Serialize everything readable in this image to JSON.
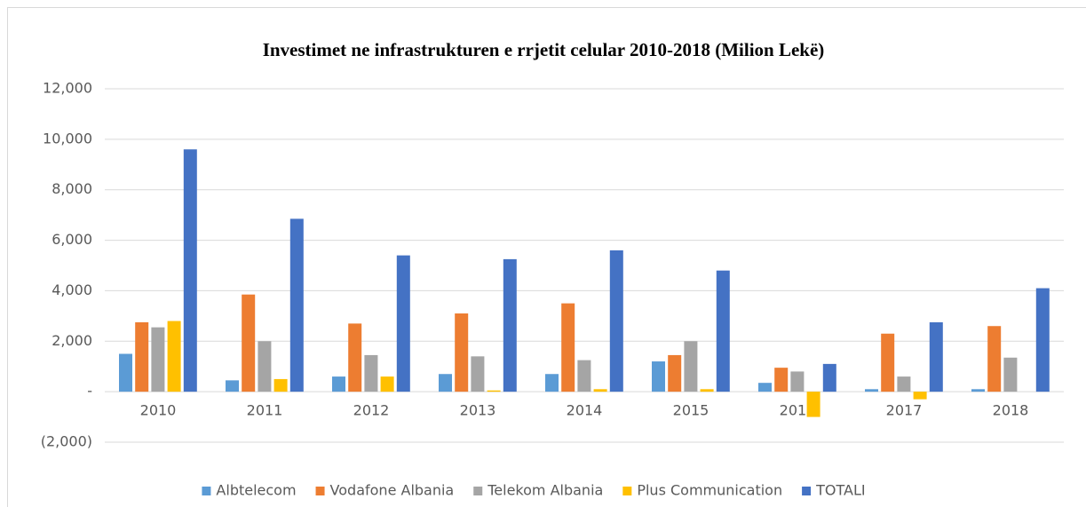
{
  "chart_data": {
    "type": "bar",
    "title": "Investimet ne infrastrukturen e rrjetit celular 2010-2018 (Milion Lekë)",
    "categories": [
      "2010",
      "2011",
      "2012",
      "2013",
      "2014",
      "2015",
      "2016",
      "2017",
      "2018"
    ],
    "series": [
      {
        "name": "Albtelecom",
        "color": "#5b9bd5",
        "values": [
          1500,
          450,
          600,
          700,
          700,
          1200,
          350,
          100,
          100
        ]
      },
      {
        "name": "Vodafone Albania",
        "color": "#ed7d31",
        "values": [
          2750,
          3850,
          2700,
          3100,
          3500,
          1450,
          950,
          2300,
          2600
        ]
      },
      {
        "name": "Telekom Albania",
        "color": "#a5a5a5",
        "values": [
          2550,
          2000,
          1450,
          1400,
          1250,
          2000,
          800,
          600,
          1350
        ]
      },
      {
        "name": "Plus Communication",
        "color": "#ffc000",
        "values": [
          2800,
          500,
          600,
          50,
          100,
          100,
          -1000,
          -300,
          0
        ]
      },
      {
        "name": "TOTALI",
        "color": "#4472c4",
        "values": [
          9600,
          6850,
          5400,
          5250,
          5600,
          4800,
          1100,
          2750,
          4100
        ]
      }
    ],
    "ylim": [
      -2000,
      12000
    ],
    "yticks": [
      {
        "value": -2000,
        "label": "(2,000)"
      },
      {
        "value": 0,
        "label": "-"
      },
      {
        "value": 2000,
        "label": "2,000"
      },
      {
        "value": 4000,
        "label": "4,000"
      },
      {
        "value": 6000,
        "label": "6,000"
      },
      {
        "value": 8000,
        "label": "8,000"
      },
      {
        "value": 10000,
        "label": "10,000"
      },
      {
        "value": 12000,
        "label": "12,000"
      }
    ],
    "grid": true,
    "legend": "bottom"
  }
}
